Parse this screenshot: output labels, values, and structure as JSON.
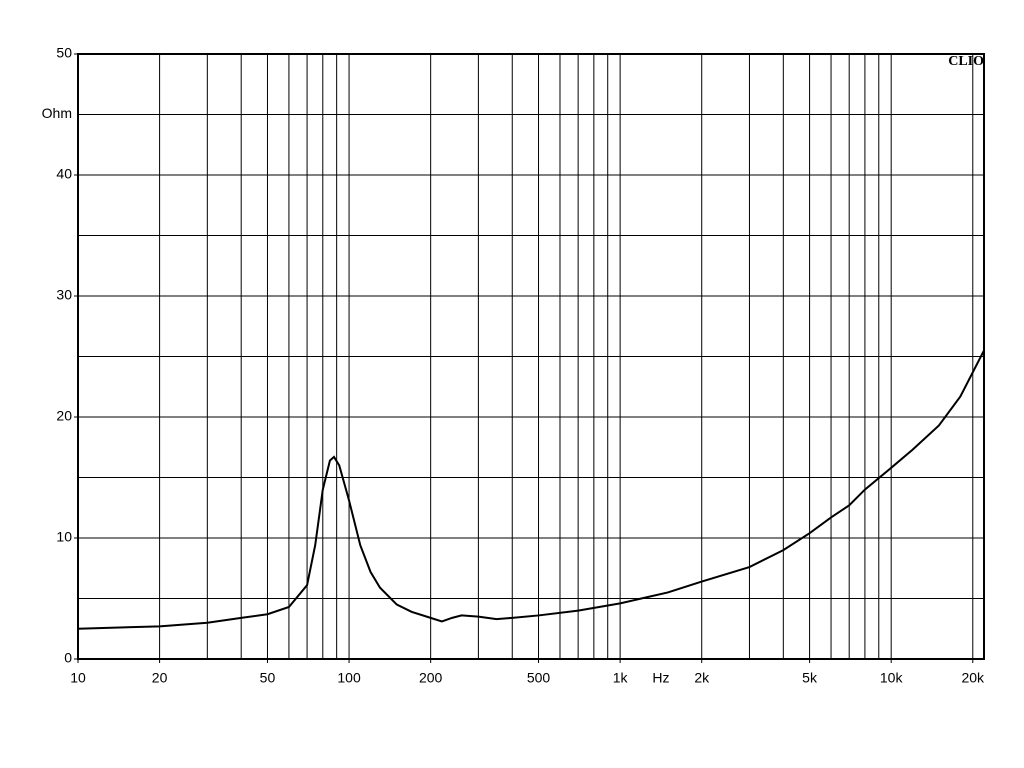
{
  "chart_data": {
    "type": "line",
    "brand": "CLIO",
    "x_label": "Hz",
    "y_label": "Ohm",
    "log_x": true,
    "grid": true,
    "xlim": [
      10,
      22000
    ],
    "ylim": [
      0,
      50
    ],
    "xticks": [
      10,
      20,
      50,
      100,
      200,
      500,
      {
        "value": 1000,
        "label": "1k"
      },
      {
        "value": 2000,
        "label": "2k"
      },
      {
        "value": 5000,
        "label": "5k"
      },
      {
        "value": 10000,
        "label": "10k"
      },
      {
        "value": 20000,
        "label": "20k"
      }
    ],
    "xminor": [
      30,
      40,
      60,
      70,
      80,
      90,
      300,
      400,
      600,
      700,
      800,
      900,
      3000,
      4000,
      6000,
      7000,
      8000,
      9000
    ],
    "yticks": [
      0,
      10,
      20,
      30,
      40,
      50
    ],
    "yminor": [
      5,
      15,
      25,
      35,
      45
    ],
    "series": [
      {
        "color": "#000000",
        "x": [
          10,
          20,
          30,
          40,
          50,
          60,
          70,
          75,
          80,
          85,
          88,
          92,
          100,
          110,
          120,
          130,
          150,
          170,
          200,
          220,
          240,
          260,
          300,
          350,
          400,
          500,
          700,
          1000,
          1500,
          2000,
          3000,
          4000,
          5000,
          6000,
          7000,
          8000,
          10000,
          12000,
          15000,
          18000,
          22000
        ],
        "values": [
          2.5,
          2.7,
          3.0,
          3.4,
          3.7,
          4.3,
          6.1,
          9.4,
          14.0,
          16.4,
          16.7,
          16.0,
          13.1,
          9.4,
          7.2,
          5.9,
          4.5,
          3.9,
          3.4,
          3.1,
          3.4,
          3.6,
          3.5,
          3.3,
          3.4,
          3.6,
          4.0,
          4.6,
          5.5,
          6.4,
          7.6,
          9.0,
          10.4,
          11.7,
          12.7,
          14.0,
          15.8,
          17.3,
          19.3,
          21.7,
          25.5
        ]
      }
    ]
  }
}
